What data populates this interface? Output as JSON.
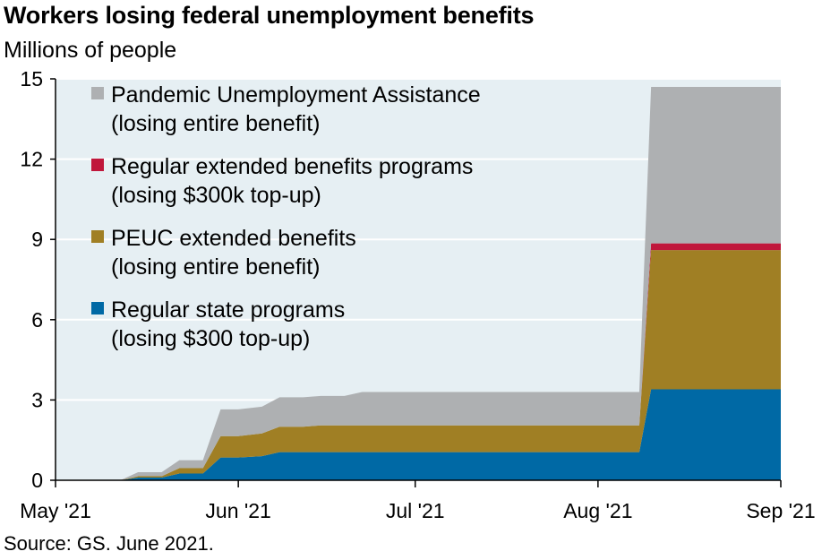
{
  "header": {
    "title": "Workers losing federal unemployment benefits",
    "subtitle": "Millions of people"
  },
  "footer": {
    "source": "Source: GS. June 2021."
  },
  "chart_data": {
    "type": "area",
    "stacked": true,
    "title": "Workers losing federal unemployment benefits",
    "ylabel": "Millions of people",
    "ylim": [
      0,
      15
    ],
    "yticks": [
      0,
      3,
      6,
      9,
      12,
      15
    ],
    "xlim": [
      "2021-05-01",
      "2021-09-01"
    ],
    "xticks": [
      {
        "date": "2021-05-01",
        "label": "May '21"
      },
      {
        "date": "2021-06-01",
        "label": "Jun '21"
      },
      {
        "date": "2021-07-01",
        "label": "Jul '21"
      },
      {
        "date": "2021-08-01",
        "label": "Aug '21"
      },
      {
        "date": "2021-09-01",
        "label": "Sep '21"
      }
    ],
    "x": [
      "2021-05-01",
      "2021-05-12",
      "2021-05-15",
      "2021-05-19",
      "2021-05-22",
      "2021-05-26",
      "2021-05-29",
      "2021-06-01",
      "2021-06-05",
      "2021-06-08",
      "2021-06-12",
      "2021-06-15",
      "2021-06-19",
      "2021-06-22",
      "2021-06-26",
      "2021-07-01",
      "2021-07-10",
      "2021-07-20",
      "2021-08-01",
      "2021-08-08",
      "2021-08-10",
      "2021-08-15",
      "2021-08-25",
      "2021-09-01"
    ],
    "series": [
      {
        "name": "Regular state programs",
        "label_line2": "(losing $300 top-up)",
        "color": "#0069a5",
        "values": [
          0,
          0,
          0.1,
          0.1,
          0.25,
          0.25,
          0.85,
          0.85,
          0.9,
          1.05,
          1.05,
          1.05,
          1.05,
          1.05,
          1.05,
          1.05,
          1.05,
          1.05,
          1.05,
          1.05,
          3.4,
          3.4,
          3.4,
          3.4
        ]
      },
      {
        "name": "PEUC extended benefits",
        "label_line2": "(losing entire benefit)",
        "color": "#a07f24",
        "values": [
          0,
          0,
          0.05,
          0.05,
          0.2,
          0.2,
          0.8,
          0.8,
          0.85,
          0.95,
          0.95,
          1.0,
          1.0,
          1.0,
          1.0,
          1.0,
          1.0,
          1.0,
          1.0,
          1.0,
          5.2,
          5.2,
          5.2,
          5.2
        ]
      },
      {
        "name": "Regular extended benefits programs",
        "label_line2": "(losing $300k top-up)",
        "color": "#c0173b",
        "values": [
          0,
          0,
          0,
          0,
          0,
          0,
          0,
          0,
          0,
          0,
          0,
          0,
          0,
          0,
          0,
          0,
          0,
          0,
          0,
          0,
          0.25,
          0.25,
          0.25,
          0.25
        ]
      },
      {
        "name": "Pandemic Unemployment Assistance",
        "label_line2": "(losing entire benefit)",
        "color": "#aeb0b2",
        "values": [
          0,
          0,
          0.15,
          0.15,
          0.3,
          0.3,
          1.0,
          1.0,
          1.0,
          1.1,
          1.1,
          1.1,
          1.1,
          1.25,
          1.25,
          1.25,
          1.25,
          1.25,
          1.25,
          1.25,
          5.85,
          5.85,
          5.85,
          5.85
        ]
      }
    ],
    "legend": {
      "placement": "top-left",
      "order": [
        "Pandemic Unemployment Assistance",
        "Regular extended benefits programs",
        "PEUC extended benefits",
        "Regular state programs"
      ]
    },
    "background_color": "#e6eff3",
    "grid": true
  }
}
